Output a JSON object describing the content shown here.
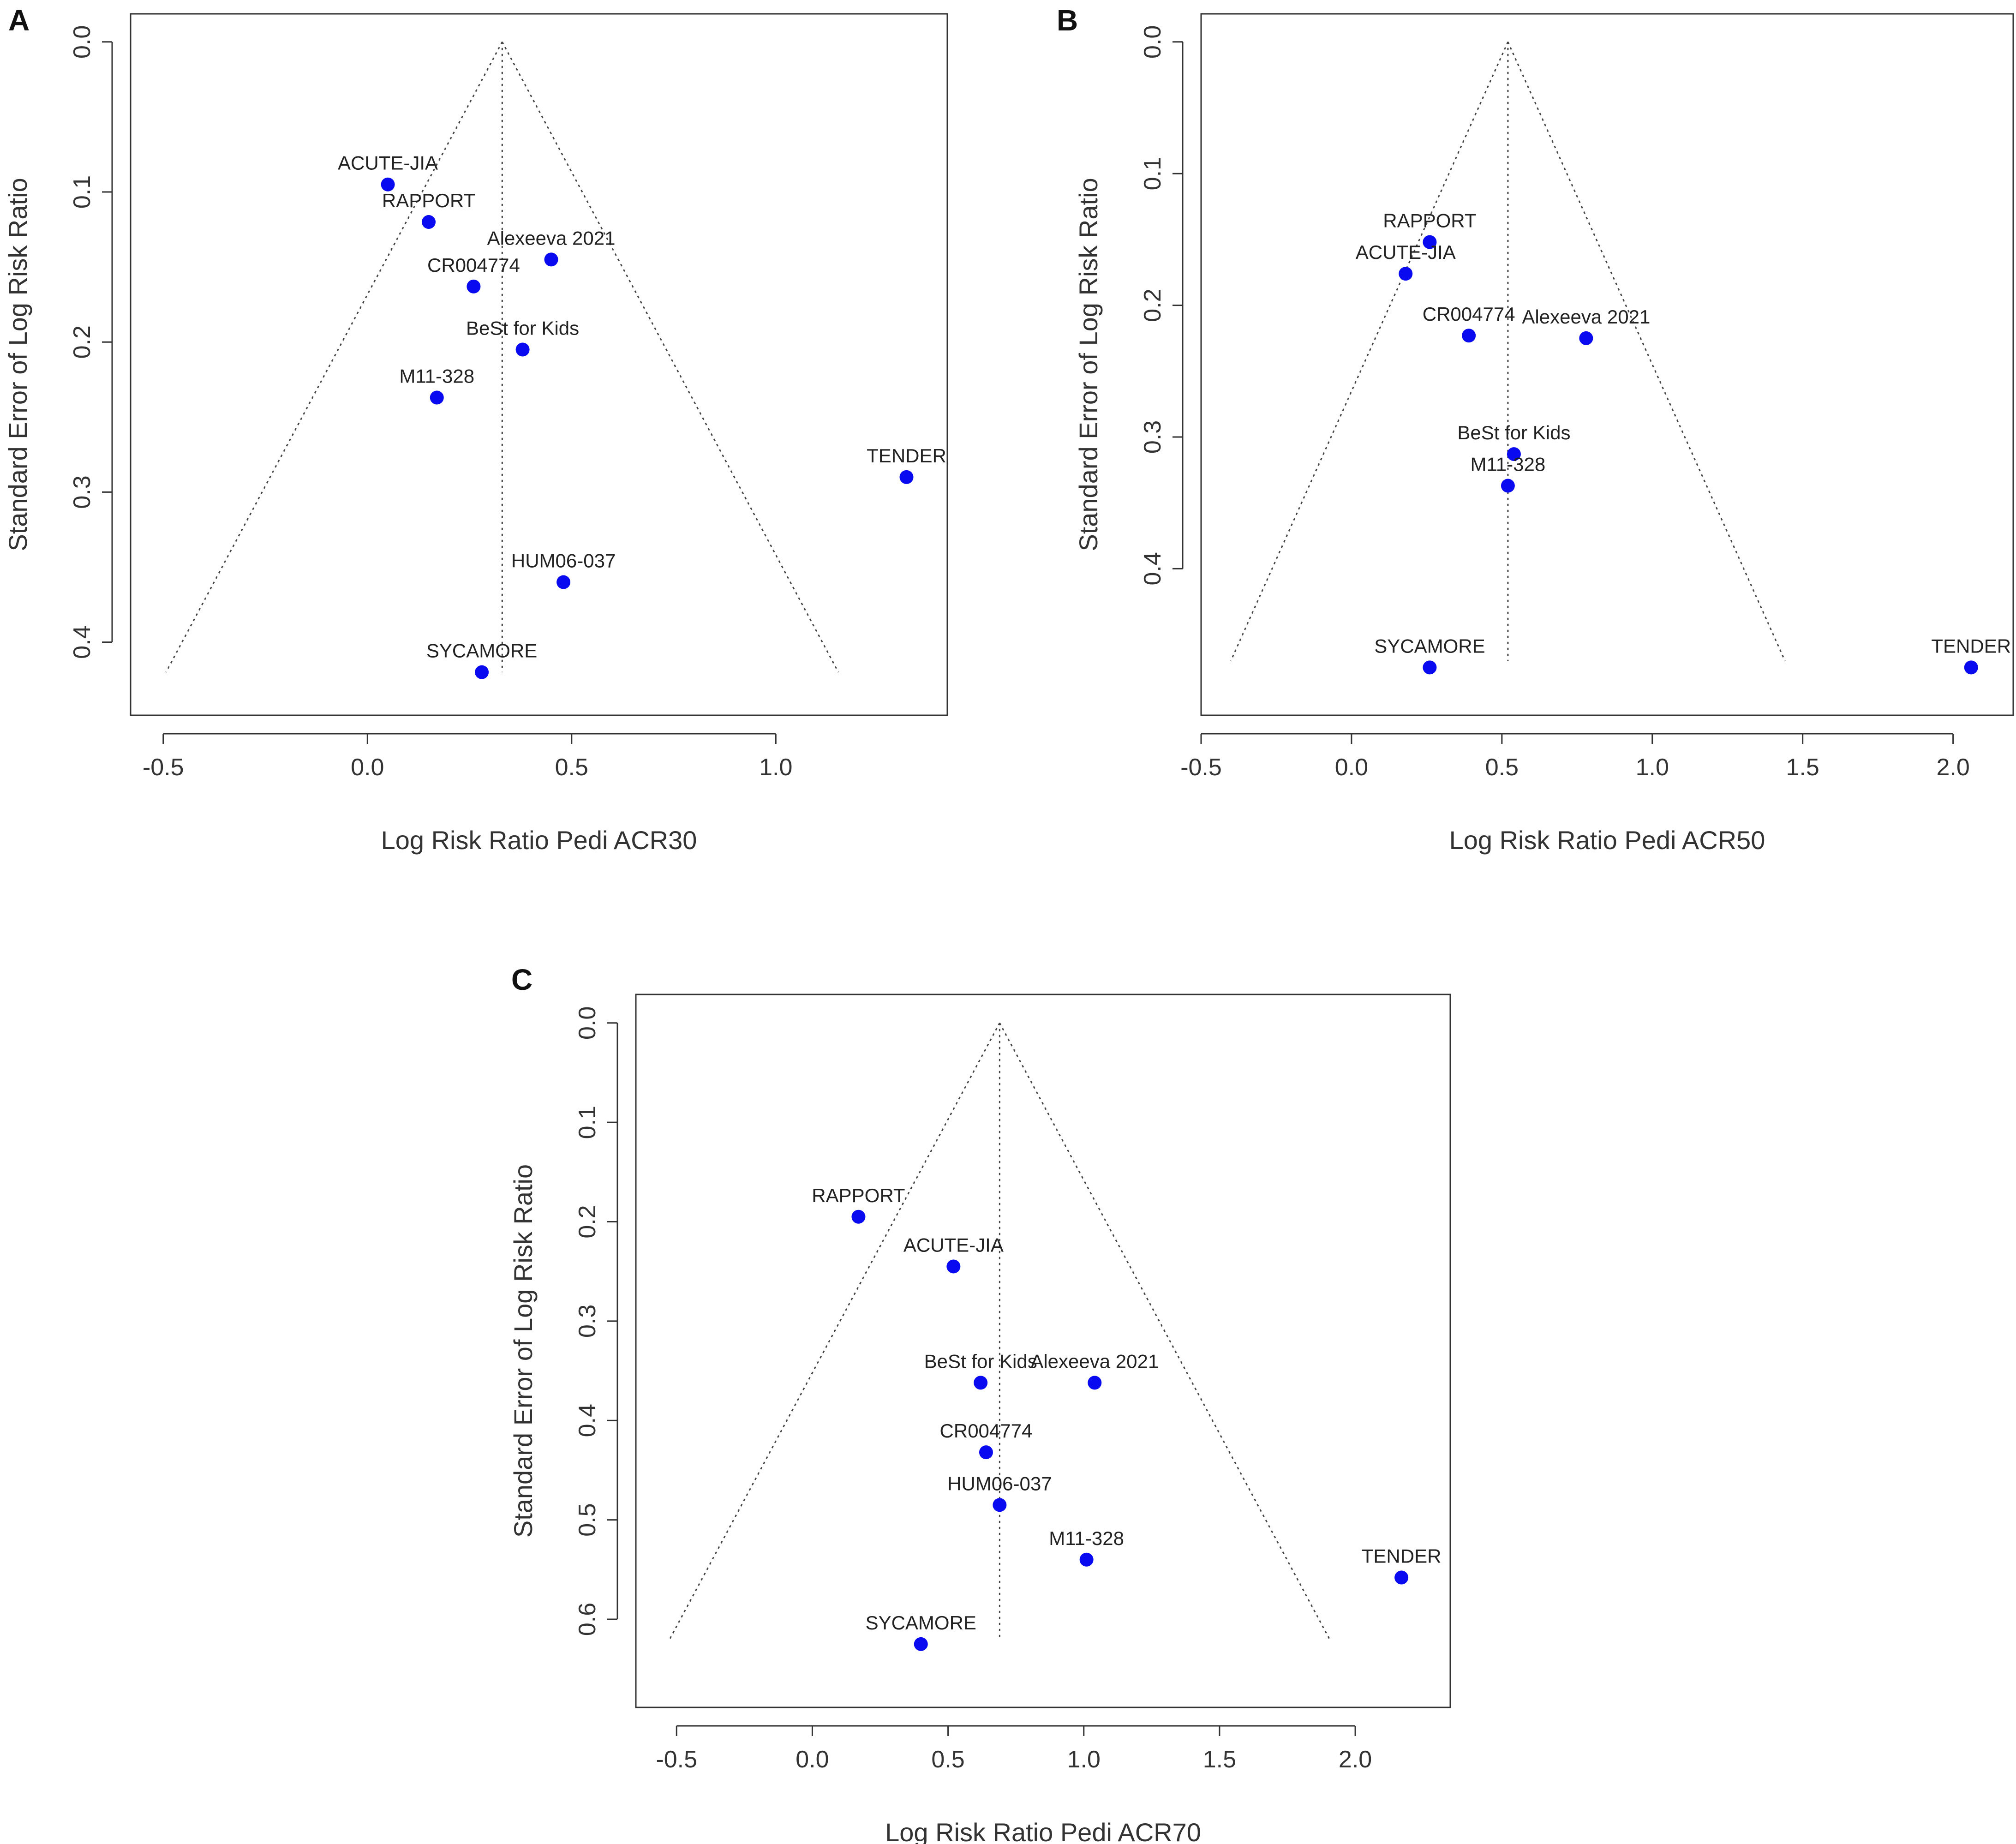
{
  "chart_data": [
    {
      "type": "scatter",
      "panel": "A",
      "subtype": "funnel",
      "xlabel": "Log Risk Ratio Pedi ACR30",
      "ylabel": "Standard Error of Log Risk Ratio",
      "xlim": [
        -0.58,
        1.42
      ],
      "ylim": [
        0.0,
        0.43
      ],
      "y_reversed": true,
      "xticks": [
        -0.5,
        0.0,
        0.5,
        1.0
      ],
      "xtick_labels": [
        "-0.5",
        "0.0",
        "0.5",
        "1.0"
      ],
      "yticks": [
        0.0,
        0.1,
        0.2,
        0.3,
        0.4
      ],
      "ytick_labels": [
        "0.0",
        "0.1",
        "0.2",
        "0.3",
        "0.4"
      ],
      "pooled_estimate": 0.33,
      "funnel_max_se": 0.42,
      "points": [
        {
          "label": "ACUTE-JIA",
          "x": 0.05,
          "y": 0.095
        },
        {
          "label": "RAPPORT",
          "x": 0.15,
          "y": 0.12
        },
        {
          "label": "Alexeeva 2021",
          "x": 0.45,
          "y": 0.145
        },
        {
          "label": "CR004774",
          "x": 0.26,
          "y": 0.163
        },
        {
          "label": "BeSt for Kids",
          "x": 0.38,
          "y": 0.205
        },
        {
          "label": "M11-328",
          "x": 0.17,
          "y": 0.237
        },
        {
          "label": "TENDER",
          "x": 1.32,
          "y": 0.29
        },
        {
          "label": "HUM06-037",
          "x": 0.48,
          "y": 0.36
        },
        {
          "label": "SYCAMORE",
          "x": 0.28,
          "y": 0.42
        }
      ]
    },
    {
      "type": "scatter",
      "panel": "B",
      "subtype": "funnel",
      "xlabel": "Log Risk Ratio Pedi ACR50",
      "ylabel": "Standard Error of Log Risk Ratio",
      "xlim": [
        -0.5,
        2.2
      ],
      "ylim": [
        0.0,
        0.49
      ],
      "y_reversed": true,
      "xticks": [
        -0.5,
        0.0,
        0.5,
        1.0,
        1.5,
        2.0
      ],
      "xtick_labels": [
        "-0.5",
        "0.0",
        "0.5",
        "1.0",
        "1.5",
        "2.0"
      ],
      "yticks": [
        0.0,
        0.1,
        0.2,
        0.3,
        0.4
      ],
      "ytick_labels": [
        "0.0",
        "0.1",
        "0.2",
        "0.3",
        "0.4"
      ],
      "pooled_estimate": 0.52,
      "funnel_max_se": 0.47,
      "points": [
        {
          "label": "RAPPORT",
          "x": 0.26,
          "y": 0.152
        },
        {
          "label": "ACUTE-JIA",
          "x": 0.18,
          "y": 0.176
        },
        {
          "label": "CR004774",
          "x": 0.39,
          "y": 0.223
        },
        {
          "label": "Alexeeva 2021",
          "x": 0.78,
          "y": 0.225
        },
        {
          "label": "BeSt for Kids",
          "x": 0.54,
          "y": 0.313
        },
        {
          "label": "M11-328",
          "x": 0.52,
          "y": 0.337
        },
        {
          "label": "SYCAMORE",
          "x": 0.26,
          "y": 0.475
        },
        {
          "label": "TENDER",
          "x": 2.06,
          "y": 0.475
        }
      ]
    },
    {
      "type": "scatter",
      "panel": "C",
      "subtype": "funnel",
      "xlabel": "Log Risk Ratio Pedi ACR70",
      "ylabel": "Standard Error of Log Risk Ratio",
      "xlim": [
        -0.65,
        2.35
      ],
      "ylim": [
        0.0,
        0.66
      ],
      "y_reversed": true,
      "xticks": [
        -0.5,
        0.0,
        0.5,
        1.0,
        1.5,
        2.0
      ],
      "xtick_labels": [
        "-0.5",
        "0.0",
        "0.5",
        "1.0",
        "1.5",
        "2.0"
      ],
      "yticks": [
        0.0,
        0.1,
        0.2,
        0.3,
        0.4,
        0.5,
        0.6
      ],
      "ytick_labels": [
        "0.0",
        "0.1",
        "0.2",
        "0.3",
        "0.4",
        "0.5",
        "0.6"
      ],
      "pooled_estimate": 0.69,
      "funnel_max_se": 0.62,
      "points": [
        {
          "label": "RAPPORT",
          "x": 0.17,
          "y": 0.195
        },
        {
          "label": "ACUTE-JIA",
          "x": 0.52,
          "y": 0.245
        },
        {
          "label": "BeSt for Kids",
          "x": 0.62,
          "y": 0.362
        },
        {
          "label": "Alexeeva 2021",
          "x": 1.04,
          "y": 0.362
        },
        {
          "label": "CR004774",
          "x": 0.64,
          "y": 0.432
        },
        {
          "label": "HUM06-037",
          "x": 0.69,
          "y": 0.485
        },
        {
          "label": "M11-328",
          "x": 1.01,
          "y": 0.54
        },
        {
          "label": "TENDER",
          "x": 2.17,
          "y": 0.558
        },
        {
          "label": "SYCAMORE",
          "x": 0.4,
          "y": 0.625
        }
      ]
    }
  ],
  "colors": {
    "point": "#0a0af0",
    "frame": "#333333",
    "funnel": "#444444"
  }
}
